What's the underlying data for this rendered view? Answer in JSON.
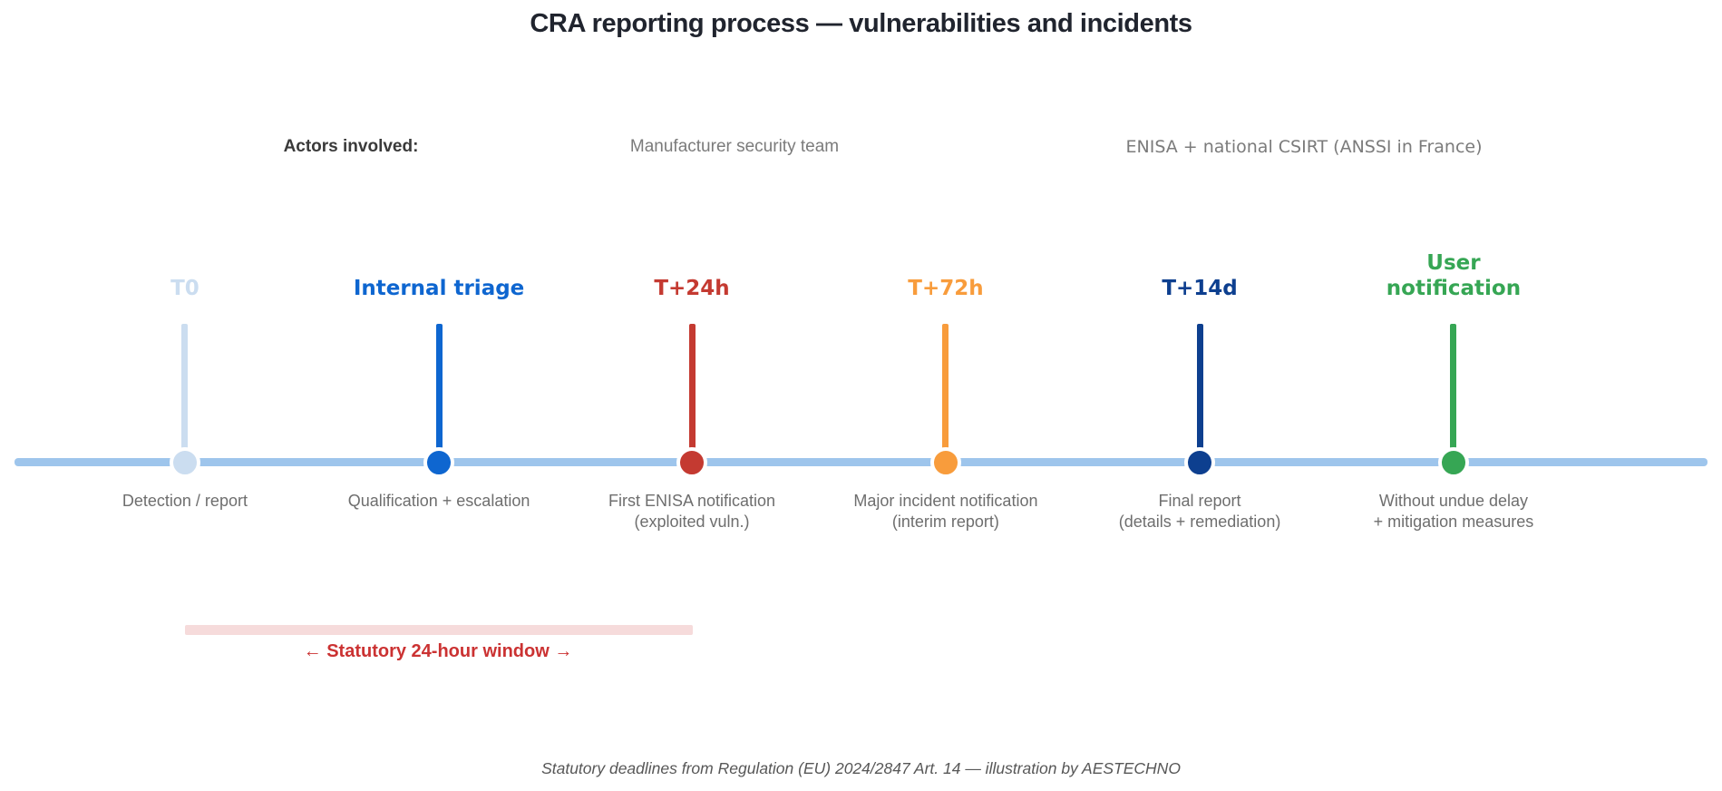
{
  "title": "CRA reporting process — vulnerabilities and incidents",
  "actors": {
    "label": "Actors involved:",
    "manufacturer": "Manufacturer security team",
    "authorities": "ENISA + national CSIRT (ANSSI in France)"
  },
  "timeline": {
    "line_color": "#9EC5EC",
    "milestones": [
      {
        "id": "t0",
        "label": "T0",
        "color": "#CBDDF0",
        "description": "Detection / report",
        "x_pct": 10.74
      },
      {
        "id": "internal-triage",
        "label": "Internal triage",
        "color": "#0E66D0",
        "description": "Qualification + escalation",
        "x_pct": 25.49
      },
      {
        "id": "t-plus-24h",
        "label": "T+24h",
        "color": "#C43A31",
        "description": "First ENISA notification\n(exploited vuln.)",
        "x_pct": 40.18
      },
      {
        "id": "t-plus-72h",
        "label": "T+72h",
        "color": "#F89C3C",
        "description": "Major incident notification\n(interim report)",
        "x_pct": 54.92
      },
      {
        "id": "t-plus-14d",
        "label": "T+14d",
        "color": "#0D3F8F",
        "description": "Final report\n(details + remediation)",
        "x_pct": 69.67
      },
      {
        "id": "user-notification",
        "label": "User\nnotification",
        "color": "#36A654",
        "description": "Without undue delay\n+ mitigation measures",
        "x_pct": 84.41
      }
    ]
  },
  "statutory_window": {
    "label": "← Statutory 24-hour window →",
    "bar_color": "#F6DBDB",
    "text_color": "#CB3232"
  },
  "footer": "Statutory deadlines from Regulation (EU) 2024/2847 Art. 14 — illustration by AESTECHNO"
}
